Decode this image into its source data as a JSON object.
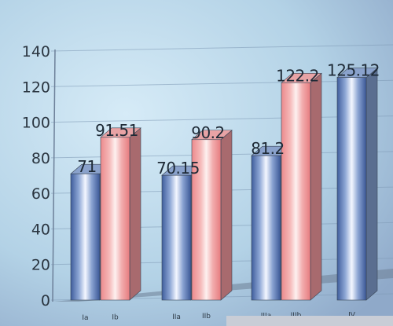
{
  "chart_data": {
    "type": "bar",
    "title": "",
    "xlabel": "",
    "ylabel": "",
    "ylim": [
      0,
      140
    ],
    "yticks": [
      0,
      20,
      40,
      60,
      80,
      100,
      120,
      140
    ],
    "grid": true,
    "three_d": true,
    "bars": [
      {
        "category": "Ia",
        "value": 71,
        "label": "71",
        "color": "blue"
      },
      {
        "category": "Ib",
        "value": 91.51,
        "label": "91.51",
        "color": "red"
      },
      {
        "category": "IIa",
        "value": 70.15,
        "label": "70.15",
        "color": "blue"
      },
      {
        "category": "IIb",
        "value": 90.2,
        "label": "90.2",
        "color": "red"
      },
      {
        "category": "IIIa",
        "value": 81.2,
        "label": "81.2",
        "color": "blue"
      },
      {
        "category": "IIIb",
        "value": 122.2,
        "label": "122.2",
        "color": "red"
      },
      {
        "category": "IV",
        "value": 125.12,
        "label": "125.12",
        "color": "blue"
      }
    ],
    "colors": {
      "blue": "#4f6eaa",
      "red": "#d9777a",
      "floor": "#6e7f96",
      "background": "#b6d4e6"
    }
  }
}
